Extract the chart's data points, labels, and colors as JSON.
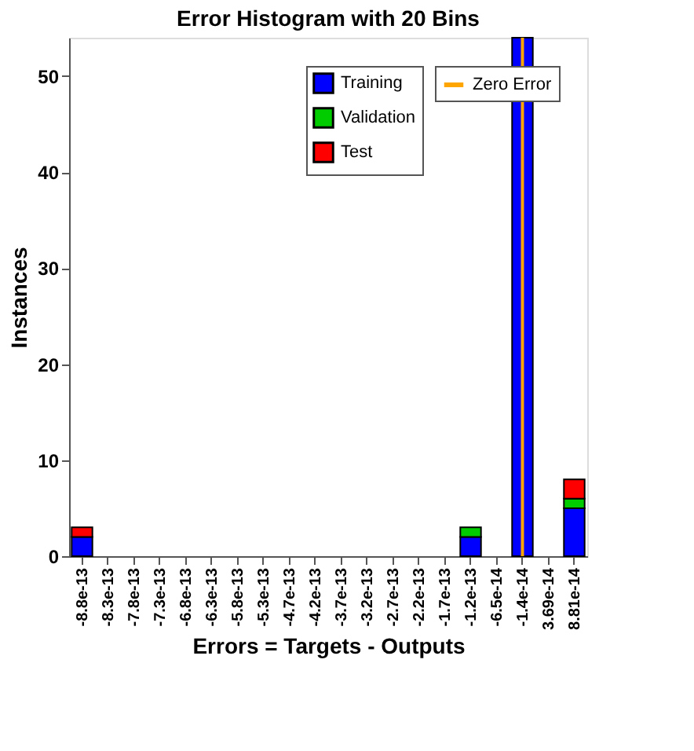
{
  "chart_data": {
    "type": "bar",
    "stacked": true,
    "title": "Error Histogram with 20 Bins",
    "xlabel": "Errors = Targets - Outputs",
    "ylabel": "Instances",
    "categories": [
      "-8.8e-13",
      "-8.3e-13",
      "-7.8e-13",
      "-7.3e-13",
      "-6.8e-13",
      "-6.3e-13",
      "-5.8e-13",
      "-5.3e-13",
      "-4.7e-13",
      "-4.2e-13",
      "-3.7e-13",
      "-3.2e-13",
      "-2.7e-13",
      "-2.2e-13",
      "-1.7e-13",
      "-1.2e-13",
      "-6.5e-14",
      "-1.4e-14",
      "3.69e-14",
      "8.81e-14"
    ],
    "series": [
      {
        "name": "Training",
        "color": "#0000ff",
        "values": [
          2,
          0,
          0,
          0,
          0,
          0,
          0,
          0,
          0,
          0,
          0,
          0,
          0,
          0,
          0,
          2,
          0,
          54,
          0,
          5
        ]
      },
      {
        "name": "Validation",
        "color": "#00cc00",
        "values": [
          0,
          0,
          0,
          0,
          0,
          0,
          0,
          0,
          0,
          0,
          0,
          0,
          0,
          0,
          0,
          1,
          0,
          0,
          0,
          1
        ]
      },
      {
        "name": "Test",
        "color": "#ff0000",
        "values": [
          1,
          0,
          0,
          0,
          0,
          0,
          0,
          0,
          0,
          0,
          0,
          0,
          0,
          0,
          0,
          0,
          0,
          0,
          0,
          2
        ]
      }
    ],
    "ref_lines": [
      {
        "axis": "x",
        "value": "-1.4e-14",
        "label": "Zero Error",
        "color": "#ffa500"
      }
    ],
    "ylim": [
      0,
      54
    ],
    "yticks": [
      0,
      10,
      20,
      30,
      40,
      50
    ],
    "grid": false,
    "legend": "top right"
  }
}
